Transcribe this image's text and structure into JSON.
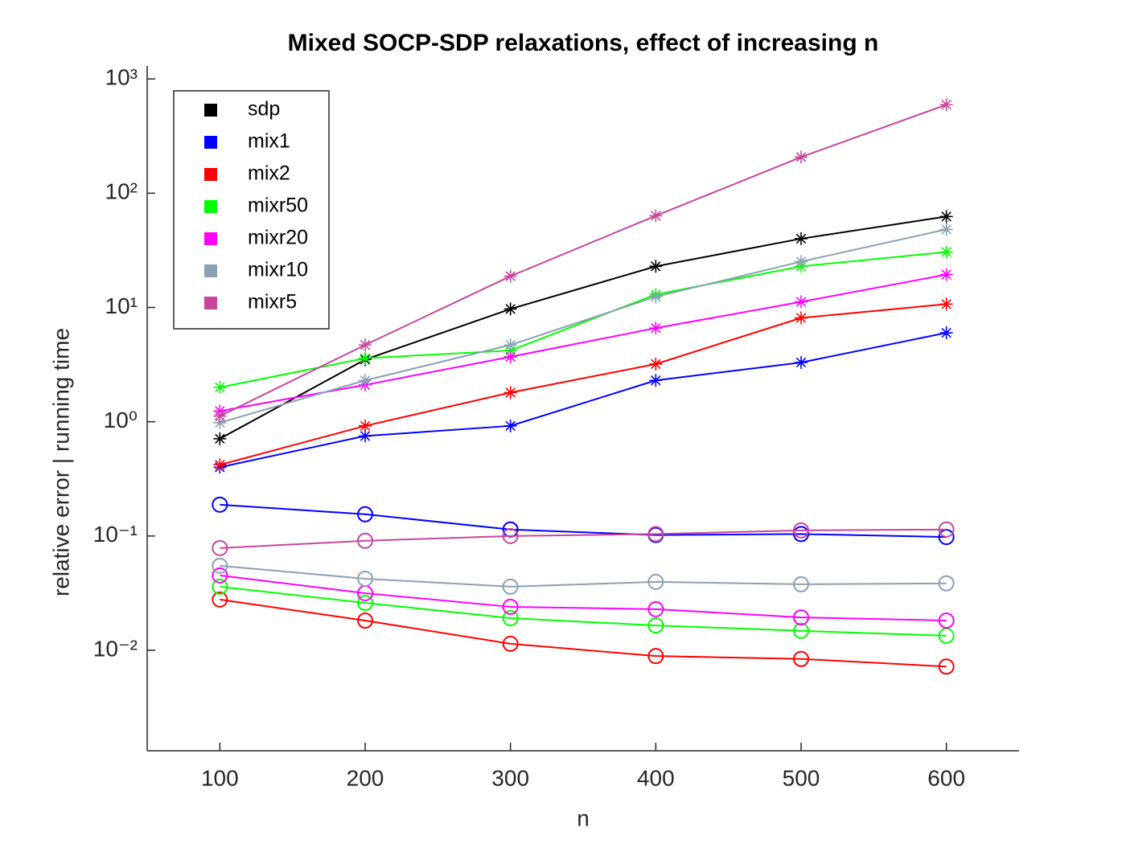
{
  "chart_data": {
    "type": "line",
    "title": "Mixed SOCP-SDP relaxations, effect of increasing n",
    "x_label": "n",
    "y_label": "relative error   |   running time",
    "x": [
      100,
      200,
      300,
      400,
      500,
      600
    ],
    "xlim": [
      50,
      650
    ],
    "xticks": [
      100,
      200,
      300,
      400,
      500,
      600
    ],
    "log_y": true,
    "ylim": [
      0.00132,
      1300
    ],
    "yticks": [
      {
        "value": 0.01,
        "label": "10⁻²"
      },
      {
        "value": 0.1,
        "label": "10⁻¹"
      },
      {
        "value": 1,
        "label": "10⁰"
      },
      {
        "value": 10,
        "label": "10¹"
      },
      {
        "value": 100,
        "label": "10²"
      },
      {
        "value": 1000,
        "label": "10³"
      }
    ],
    "legend": "upper left",
    "series": [
      {
        "name": "sdp",
        "color": "#000000",
        "values": [
          0.71,
          3.5,
          9.7,
          22.9,
          40,
          62.5
        ]
      },
      {
        "name": "mix1",
        "color": "#0000ff",
        "values": [
          0.4,
          0.75,
          0.92,
          2.3,
          3.3,
          6.0
        ],
        "error_values": [
          0.188,
          0.155,
          0.114,
          0.102,
          0.104,
          0.098
        ]
      },
      {
        "name": "mix2",
        "color": "#ff0000",
        "values": [
          0.42,
          0.92,
          1.8,
          3.2,
          8.1,
          10.7
        ],
        "error_values": [
          0.0278,
          0.0182,
          0.0114,
          0.0089,
          0.0084,
          0.0072
        ]
      },
      {
        "name": "mixr50",
        "color": "#00ff00",
        "values": [
          2.0,
          3.6,
          4.2,
          13,
          22.9,
          30.6
        ],
        "error_values": [
          0.036,
          0.026,
          0.0191,
          0.0165,
          0.0148,
          0.0134
        ]
      },
      {
        "name": "mixr20",
        "color": "#ff00ff",
        "values": [
          1.24,
          2.1,
          3.7,
          6.6,
          11.2,
          19.4
        ],
        "error_values": [
          0.0452,
          0.0316,
          0.024,
          0.0229,
          0.0194,
          0.0182
        ]
      },
      {
        "name": "mixr10",
        "color": "#8aa0b4",
        "values": [
          0.98,
          2.3,
          4.7,
          12.4,
          25.2,
          48.2
        ],
        "error_values": [
          0.0549,
          0.0423,
          0.036,
          0.0397,
          0.0378,
          0.0385
        ]
      },
      {
        "name": "mixr5",
        "color": "#c8459c",
        "values": [
          1.12,
          4.7,
          18.8,
          63.5,
          207,
          595
        ],
        "error_values": [
          0.0784,
          0.0908,
          0.1,
          0.104,
          0.112,
          0.114
        ]
      }
    ]
  }
}
